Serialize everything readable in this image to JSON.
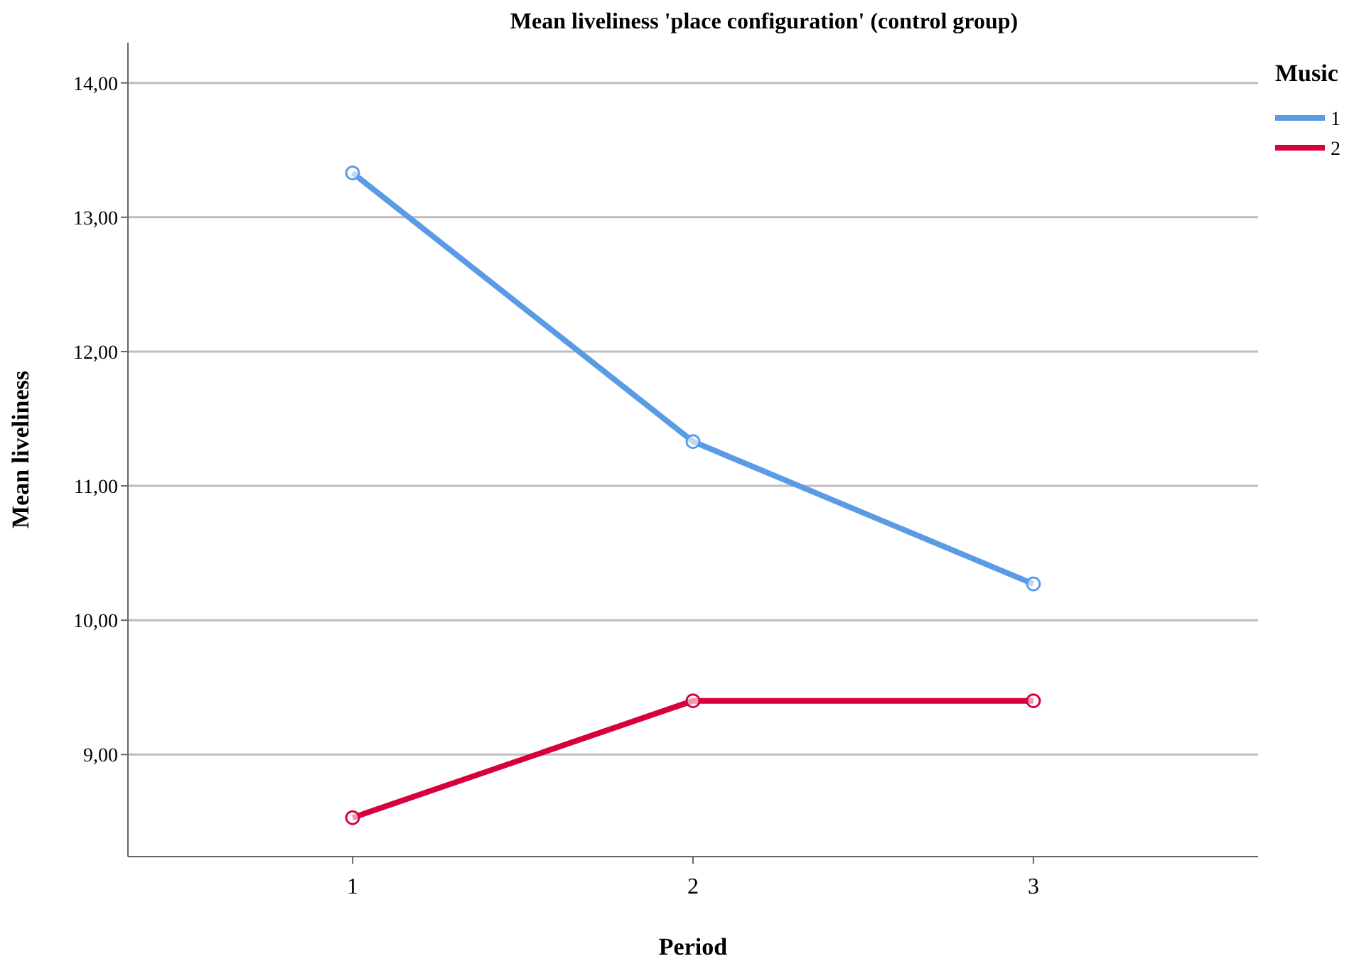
{
  "chart_data": {
    "type": "line",
    "title": "Mean liveliness 'place configuration' (control group)",
    "xlabel": "Period",
    "ylabel": "Mean liveliness",
    "legend_title": "Music",
    "categories": [
      "1",
      "2",
      "3"
    ],
    "series": [
      {
        "name": "1",
        "color": "#5b9be6",
        "values": [
          13.33,
          11.33,
          10.27
        ]
      },
      {
        "name": "2",
        "color": "#d6003d",
        "values": [
          8.53,
          9.4,
          9.4
        ]
      }
    ],
    "ylim": [
      8.24,
      14.3
    ],
    "yticks": [
      {
        "value": 9,
        "label": "9,00"
      },
      {
        "value": 10,
        "label": "10,00"
      },
      {
        "value": 11,
        "label": "11,00"
      },
      {
        "value": 12,
        "label": "12,00"
      },
      {
        "value": 13,
        "label": "13,00"
      },
      {
        "value": 14,
        "label": "14,00"
      }
    ],
    "grid": "y",
    "legend": "right",
    "marker": "circle",
    "line_style": "solid"
  }
}
